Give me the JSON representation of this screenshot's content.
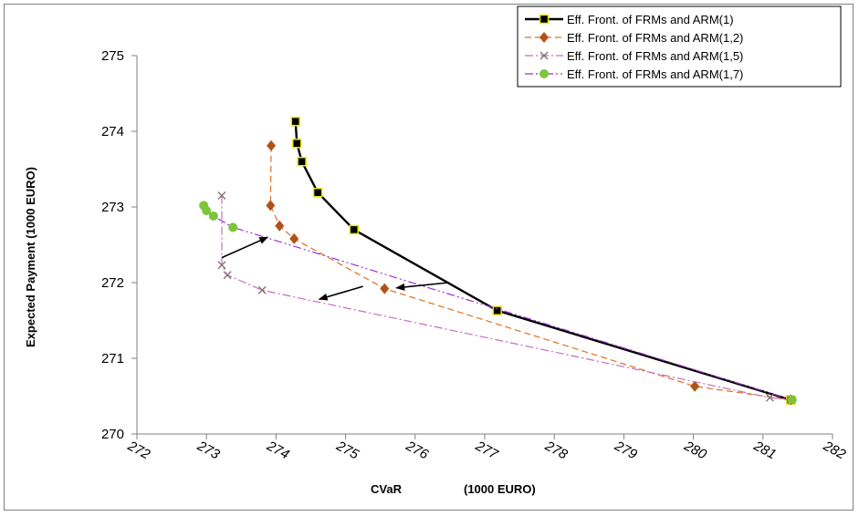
{
  "chart_data": {
    "type": "line",
    "xlabel_left": "CVaR",
    "xlabel_right": "(1000 EURO)",
    "ylabel": "Expected Payment   (1000 EURO)",
    "xlim": [
      272,
      282
    ],
    "ylim": [
      270,
      275
    ],
    "x_ticks": [
      "272",
      "273",
      "274",
      "275",
      "276",
      "277",
      "278",
      "279",
      "280",
      "281",
      "282"
    ],
    "y_ticks": [
      "270",
      "271",
      "272",
      "273",
      "274",
      "275"
    ],
    "grid": false,
    "legend_position": "top-right",
    "series": [
      {
        "name": "Eff. Front. of FRMs and ARM(1)",
        "color": "#000000",
        "marker": "square",
        "line_style": "solid",
        "points": [
          [
            274.28,
            274.13
          ],
          [
            274.3,
            273.84
          ],
          [
            274.37,
            273.6
          ],
          [
            274.6,
            273.19
          ],
          [
            275.12,
            272.7
          ],
          [
            277.18,
            271.63
          ],
          [
            281.4,
            270.45
          ]
        ]
      },
      {
        "name": "Eff. Front. of FRMs and ARM(1,2)",
        "color": "#e07020",
        "marker": "diamond",
        "line_style": "dashed",
        "points": [
          [
            273.93,
            273.81
          ],
          [
            273.92,
            273.02
          ],
          [
            274.05,
            272.75
          ],
          [
            274.26,
            272.58
          ],
          [
            275.56,
            271.92
          ],
          [
            280.02,
            270.63
          ],
          [
            281.4,
            270.45
          ]
        ]
      },
      {
        "name": "Eff. Front. of FRMs and ARM(1,5)",
        "color": "#c070c0",
        "marker": "x",
        "line_style": "dashdot",
        "points": [
          [
            273.22,
            273.15
          ],
          [
            273.22,
            272.23
          ],
          [
            273.3,
            272.1
          ],
          [
            273.8,
            271.9
          ],
          [
            281.1,
            270.48
          ],
          [
            281.4,
            270.45
          ]
        ]
      },
      {
        "name": "Eff. Front. of FRMs and ARM(1,7)",
        "color": "#9933cc",
        "marker": "circle",
        "line_style": "dashdotdot",
        "points": [
          [
            272.96,
            273.02
          ],
          [
            273.0,
            272.95
          ],
          [
            273.1,
            272.88
          ],
          [
            273.38,
            272.73
          ],
          [
            281.42,
            270.45
          ]
        ]
      }
    ],
    "annotations": [
      {
        "type": "arrow",
        "from": [
          273.22,
          272.33
        ],
        "to": [
          273.88,
          272.6
        ]
      },
      {
        "type": "arrow",
        "from": [
          275.25,
          271.95
        ],
        "to": [
          274.62,
          271.78
        ]
      },
      {
        "type": "arrow",
        "from": [
          276.48,
          272.0
        ],
        "to": [
          275.73,
          271.93
        ]
      }
    ]
  }
}
